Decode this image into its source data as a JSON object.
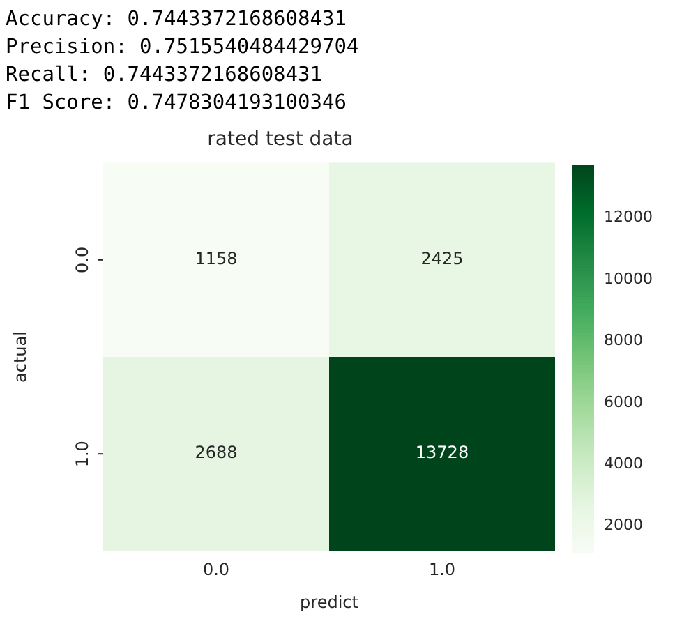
{
  "chart_data": {
    "type": "heatmap",
    "title": "rated test data",
    "xlabel": "predict",
    "ylabel": "actual",
    "annotations": [
      "Accuracy: 0.7443372168608431",
      "Precision: 0.7515540484429704",
      "Recall: 0.7443372168608431",
      "F1 Score: 0.7478304193100346"
    ],
    "categories": [
      "0.0",
      "1.0"
    ],
    "y_categories": [
      "0.0",
      "1.0"
    ],
    "cells": [
      [
        1158,
        2425
      ],
      [
        2688,
        13728
      ]
    ],
    "data_labels": true,
    "clim": [
      1158,
      13728
    ],
    "cticks": [
      2000,
      4000,
      6000,
      8000,
      10000,
      12000
    ]
  }
}
